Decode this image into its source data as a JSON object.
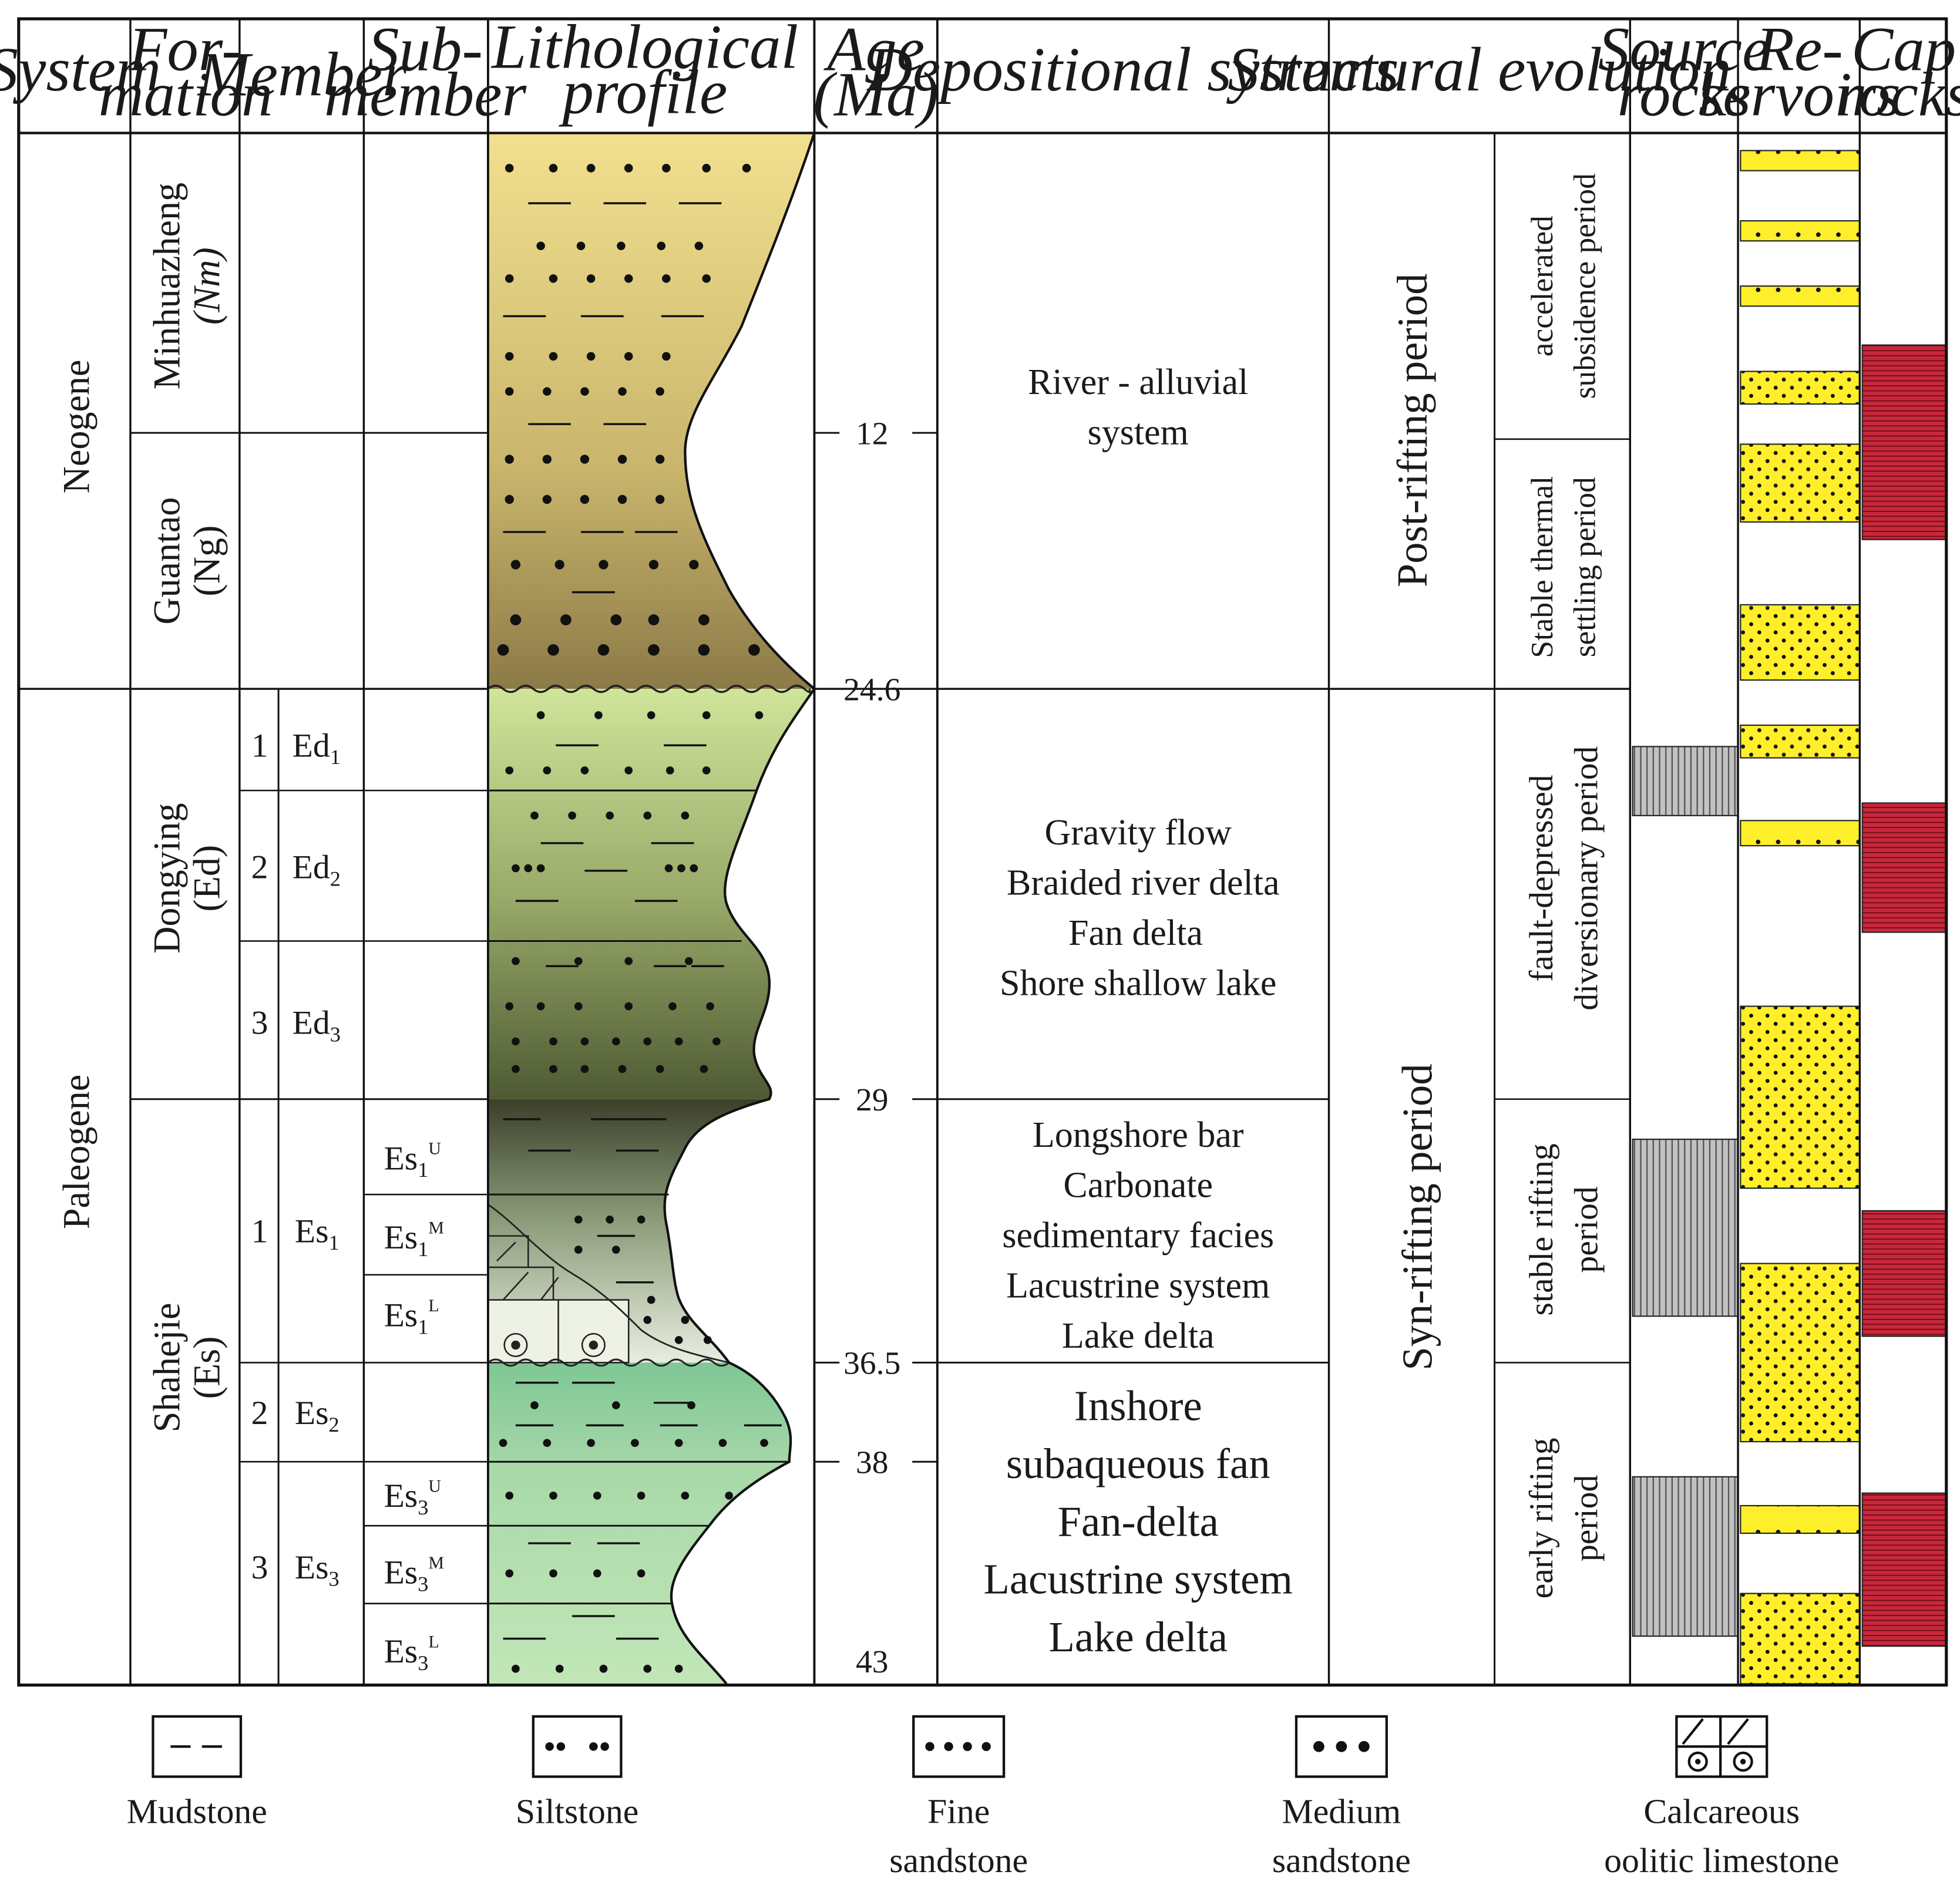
{
  "headers": {
    "system": "System",
    "formation": [
      "For-",
      "mation"
    ],
    "member": "Member",
    "submember": [
      "Sub-",
      "member"
    ],
    "litho": [
      "Lithological",
      "profile"
    ],
    "age": [
      "Age",
      "(Ma)"
    ],
    "depositional": "Depositional systems",
    "structural": "Structural evolution",
    "source": [
      "Source",
      "rocks"
    ],
    "reservoirs": [
      "Re-",
      "servoirs"
    ],
    "cap": [
      "Cap",
      "rocks"
    ]
  },
  "systems": [
    "Neogene",
    "Paleogene"
  ],
  "formations": [
    {
      "name": "Minhuazheng",
      "code": "(Nm)"
    },
    {
      "name": "Guantao",
      "code": "(Ng)"
    },
    {
      "name": "Dongying",
      "code": "(Ed)"
    },
    {
      "name": "Shahejie",
      "code": "(Es)"
    }
  ],
  "members": [
    {
      "num": "1",
      "code": "Ed",
      "sub": "1"
    },
    {
      "num": "2",
      "code": "Ed",
      "sub": "2"
    },
    {
      "num": "3",
      "code": "Ed",
      "sub": "3"
    },
    {
      "num": "1",
      "code": "Es",
      "sub": "1"
    },
    {
      "num": "2",
      "code": "Es",
      "sub": "2"
    },
    {
      "num": "3",
      "code": "Es",
      "sub": "3"
    }
  ],
  "submembers": [
    {
      "base": "Es",
      "sub": "1",
      "sup": "U"
    },
    {
      "base": "Es",
      "sub": "1",
      "sup": "M"
    },
    {
      "base": "Es",
      "sub": "1",
      "sup": "L"
    },
    {
      "base": "Es",
      "sub": "3",
      "sup": "U"
    },
    {
      "base": "Es",
      "sub": "3",
      "sup": "M"
    },
    {
      "base": "Es",
      "sub": "3",
      "sup": "L"
    }
  ],
  "ages": [
    "12",
    "24.6",
    "29",
    "36.5",
    "38",
    "43"
  ],
  "depositional": {
    "river": [
      "River - alluvial",
      "system"
    ],
    "dongying": [
      "Gravity flow",
      "Braided river delta",
      "Fan delta",
      "Shore shallow lake"
    ],
    "es1": [
      "Longshore bar",
      "Carbonate",
      "sedimentary facies",
      "Lacustrine system",
      "Lake delta"
    ],
    "es23": [
      "Inshore",
      "subaqueous fan",
      "Fan-delta",
      "Lacustrine system",
      "Lake delta"
    ]
  },
  "structural": {
    "post": "Post-rifting period",
    "syn": "Syn-rifting period",
    "stages": [
      [
        "accelerated",
        "subsidence period"
      ],
      [
        "Stable thermal",
        "settling period"
      ],
      [
        "fault-depressed",
        "diversionary period"
      ],
      [
        "stable rifting",
        "period"
      ],
      [
        "early rifting",
        "period"
      ]
    ]
  },
  "legend": [
    {
      "label": [
        "Mudstone"
      ]
    },
    {
      "label": [
        "Siltstone"
      ]
    },
    {
      "label": [
        "Fine",
        "sandstone"
      ]
    },
    {
      "label": [
        "Medium",
        "sandstone"
      ]
    },
    {
      "label": [
        "Calcareous",
        "oolitic limestone"
      ]
    }
  ],
  "colors": {
    "reservoir": "#ffef2a",
    "cap": "#c8283a",
    "source": "#b0b0b0",
    "neogene_top": "#f2e08f",
    "neogene_bottom": "#8c7a48",
    "dongying_top": "#cfe59a",
    "dongying_bottom": "#4e5a33",
    "es1_top": "#3b3f2a",
    "es1_bottom": "#e8eee0",
    "es2": "#8fcf9c",
    "es3": "#b5dfb0"
  }
}
